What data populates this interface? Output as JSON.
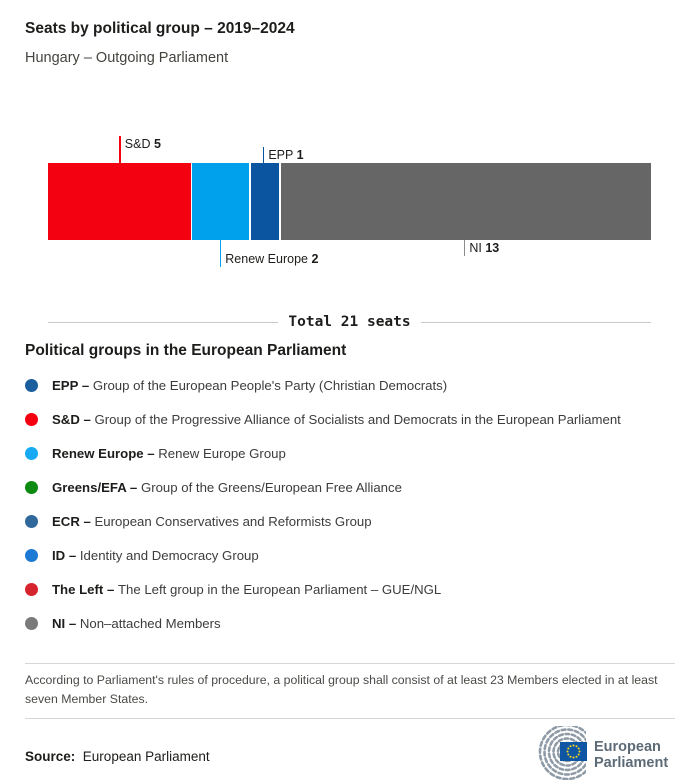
{
  "header": {
    "title": "Seats by political group – 2019–2024",
    "subtitle": "Hungary – Outgoing Parliament"
  },
  "chart_data": {
    "type": "bar",
    "variant": "horizontal-stacked",
    "title": "Seats by political group – 2019–2024",
    "subtitle": "Hungary – Outgoing Parliament",
    "total_seats": 21,
    "total_label": "Total 21 seats",
    "segments": [
      {
        "group": "S&D",
        "seats": 5,
        "color": "#f30011",
        "callout_side": "top",
        "callout_size": "tall",
        "tick_color": "#f30011"
      },
      {
        "group": "Renew Europe",
        "seats": 2,
        "color": "#00a1ec",
        "callout_side": "bottom",
        "callout_size": "tall",
        "tick_color": "#00a1ec"
      },
      {
        "group": "EPP",
        "seats": 1,
        "color": "#0b55a0",
        "callout_side": "top",
        "callout_size": "short",
        "tick_color": "#0b55a0"
      },
      {
        "group": "NI",
        "seats": 13,
        "color": "#666667",
        "callout_side": "bottom",
        "callout_size": "short",
        "tick_color": "#8c8c8c"
      }
    ]
  },
  "legend": {
    "heading": "Political groups in the European Parliament",
    "items": [
      {
        "abbr": "EPP –",
        "name": "Group of the European People's Party (Christian Democrats)",
        "color": "#1b5e9e"
      },
      {
        "abbr": "S&D –",
        "name": "Group of the Progressive Alliance of Socialists and Democrats in the European Parliament",
        "color": "#f30011"
      },
      {
        "abbr": "Renew Europe –",
        "name": "Renew Europe Group",
        "color": "#16a9f4"
      },
      {
        "abbr": "Greens/EFA –",
        "name": "Group of the Greens/European Free Alliance",
        "color": "#0d8a11"
      },
      {
        "abbr": "ECR –",
        "name": "European Conservatives and Reformists Group",
        "color": "#31689b"
      },
      {
        "abbr": "ID –",
        "name": "Identity and Democracy Group",
        "color": "#1d7ad4"
      },
      {
        "abbr": "The Left –",
        "name": "The Left group in the European Parliament – GUE/NGL",
        "color": "#d5242e"
      },
      {
        "abbr": "NI –",
        "name": "Non–attached Members",
        "color": "#7a7a7a"
      }
    ]
  },
  "footnote": "According to Parliament's rules of procedure, a political group shall consist of at least 23 Members elected in at least seven Member States.",
  "source": {
    "label": "Source:",
    "value": "European Parliament"
  },
  "logo": {
    "line1": "European",
    "line2": "Parliament",
    "flag_color": "#0e56a4",
    "star_color": "#ffd617",
    "arc_color": "#8f9ba6",
    "text_color": "#5d6b77"
  }
}
